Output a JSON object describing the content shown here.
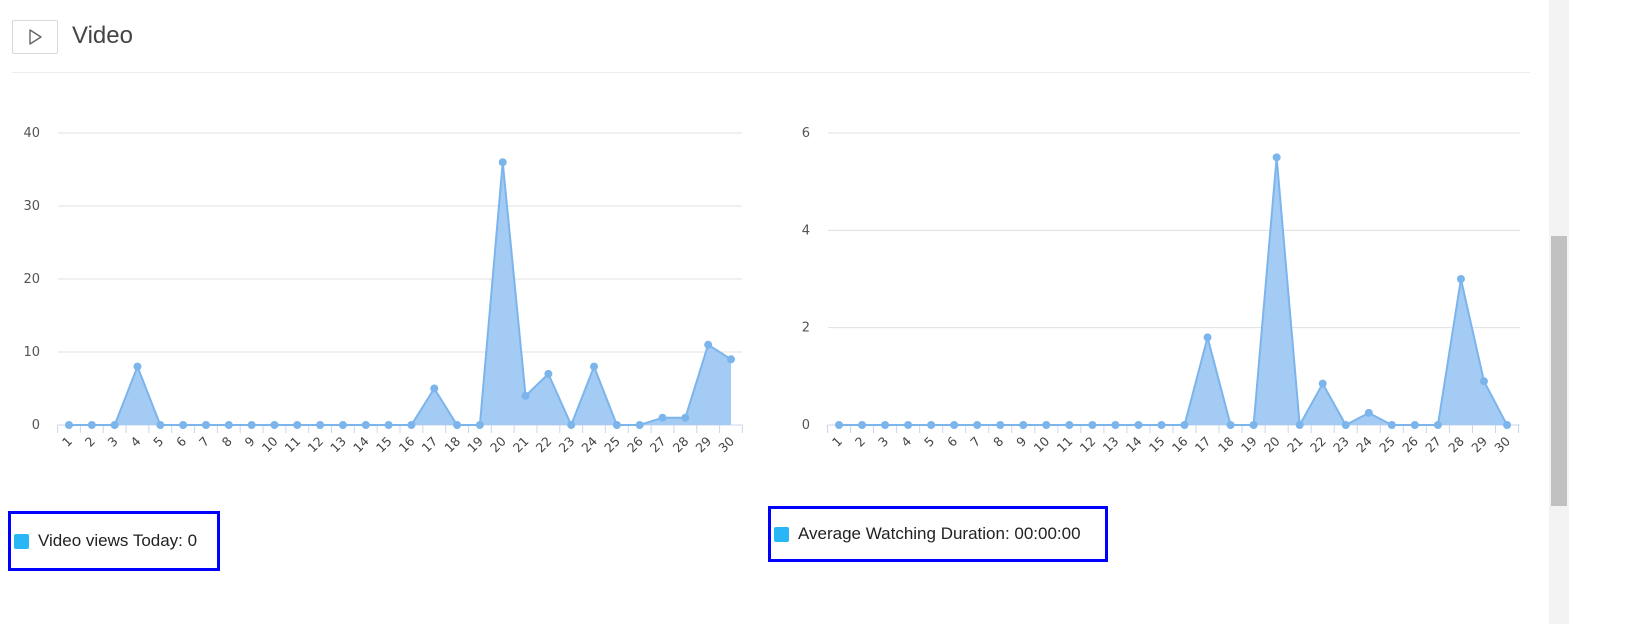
{
  "header": {
    "title": "Video",
    "play_icon": "play-icon"
  },
  "legends": [
    {
      "label": "Video views Today: 0",
      "color": "#29b6f6"
    },
    {
      "label": "Average Watching Duration: 00:00:00",
      "color": "#29b6f6"
    }
  ],
  "chart_data": [
    {
      "type": "area",
      "title": "",
      "xlabel": "",
      "ylabel": "",
      "categories": [
        "1",
        "2",
        "3",
        "4",
        "5",
        "6",
        "7",
        "8",
        "9",
        "10",
        "11",
        "12",
        "13",
        "14",
        "15",
        "16",
        "17",
        "18",
        "19",
        "20",
        "21",
        "22",
        "23",
        "24",
        "25",
        "26",
        "27",
        "28",
        "29",
        "30"
      ],
      "series": [
        {
          "values": [
            0,
            0,
            0,
            8,
            0,
            0,
            0,
            0,
            0,
            0,
            0,
            0,
            0,
            0,
            0,
            0,
            5,
            0,
            0,
            36,
            4,
            7,
            0,
            8,
            0,
            0,
            1,
            1,
            11,
            9
          ]
        }
      ],
      "ylim": [
        0,
        40
      ],
      "yticks": [
        0,
        10,
        20,
        30,
        40
      ],
      "grid": true,
      "colors": {
        "fill": "#9ec8f2",
        "line": "#7cb5ec"
      }
    },
    {
      "type": "area",
      "title": "",
      "xlabel": "",
      "ylabel": "",
      "categories": [
        "1",
        "2",
        "3",
        "4",
        "5",
        "6",
        "7",
        "8",
        "9",
        "10",
        "11",
        "12",
        "13",
        "14",
        "15",
        "16",
        "17",
        "18",
        "19",
        "20",
        "21",
        "22",
        "23",
        "24",
        "25",
        "26",
        "27",
        "28",
        "29",
        "30"
      ],
      "series": [
        {
          "values": [
            0,
            0,
            0,
            0,
            0,
            0,
            0,
            0,
            0,
            0,
            0,
            0,
            0,
            0,
            0,
            0,
            1.8,
            0,
            0,
            5.5,
            0,
            0.85,
            0,
            0.25,
            0,
            0,
            0,
            3.0,
            0.9,
            0
          ]
        }
      ],
      "ylim": [
        0,
        6
      ],
      "yticks": [
        0,
        2,
        4,
        6
      ],
      "grid": true,
      "colors": {
        "fill": "#9ec8f2",
        "line": "#7cb5ec"
      }
    }
  ]
}
